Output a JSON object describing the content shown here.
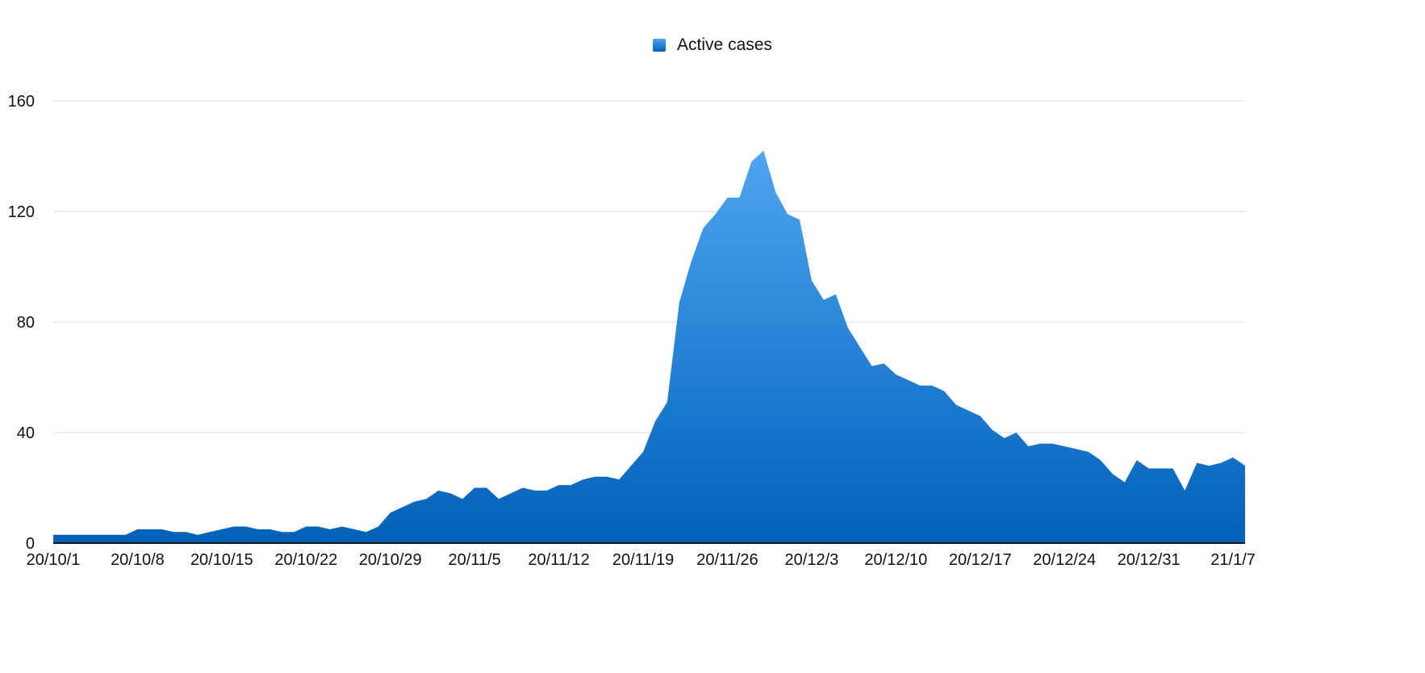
{
  "chart_data": {
    "type": "area",
    "legend": [
      {
        "label": "Active cases",
        "position": "top-center"
      }
    ],
    "series": [
      {
        "name": "Active cases",
        "color_top": "#4da6f0",
        "color_bottom": "#0061bb"
      }
    ],
    "y_ticks": [
      "0",
      "40",
      "80",
      "120",
      "160"
    ],
    "ylim": [
      0,
      160
    ],
    "grid": true,
    "x_ticks": [
      "20/10/1",
      "20/10/8",
      "20/10/15",
      "20/10/22",
      "20/10/29",
      "20/11/5",
      "20/11/12",
      "20/11/19",
      "20/11/26",
      "20/12/3",
      "20/12/10",
      "20/12/17",
      "20/12/24",
      "20/12/31",
      "21/1/7"
    ],
    "x": [
      "2020-10-01",
      "2020-10-02",
      "2020-10-03",
      "2020-10-04",
      "2020-10-05",
      "2020-10-06",
      "2020-10-07",
      "2020-10-08",
      "2020-10-09",
      "2020-10-10",
      "2020-10-11",
      "2020-10-12",
      "2020-10-13",
      "2020-10-14",
      "2020-10-15",
      "2020-10-16",
      "2020-10-17",
      "2020-10-18",
      "2020-10-19",
      "2020-10-20",
      "2020-10-21",
      "2020-10-22",
      "2020-10-23",
      "2020-10-24",
      "2020-10-25",
      "2020-10-26",
      "2020-10-27",
      "2020-10-28",
      "2020-10-29",
      "2020-10-30",
      "2020-10-31",
      "2020-11-01",
      "2020-11-02",
      "2020-11-03",
      "2020-11-04",
      "2020-11-05",
      "2020-11-06",
      "2020-11-07",
      "2020-11-08",
      "2020-11-09",
      "2020-11-10",
      "2020-11-11",
      "2020-11-12",
      "2020-11-13",
      "2020-11-14",
      "2020-11-15",
      "2020-11-16",
      "2020-11-17",
      "2020-11-18",
      "2020-11-19",
      "2020-11-20",
      "2020-11-21",
      "2020-11-22",
      "2020-11-23",
      "2020-11-24",
      "2020-11-25",
      "2020-11-26",
      "2020-11-27",
      "2020-11-28",
      "2020-11-29",
      "2020-11-30",
      "2020-12-01",
      "2020-12-02",
      "2020-12-03",
      "2020-12-04",
      "2020-12-05",
      "2020-12-06",
      "2020-12-07",
      "2020-12-08",
      "2020-12-09",
      "2020-12-10",
      "2020-12-11",
      "2020-12-12",
      "2020-12-13",
      "2020-12-14",
      "2020-12-15",
      "2020-12-16",
      "2020-12-17",
      "2020-12-18",
      "2020-12-19",
      "2020-12-20",
      "2020-12-21",
      "2020-12-22",
      "2020-12-23",
      "2020-12-24",
      "2020-12-25",
      "2020-12-26",
      "2020-12-27",
      "2020-12-28",
      "2020-12-29",
      "2020-12-30",
      "2020-12-31",
      "2021-01-01",
      "2021-01-02",
      "2021-01-03",
      "2021-01-04",
      "2021-01-05",
      "2021-01-06",
      "2021-01-07",
      "2021-01-08"
    ],
    "values": [
      3,
      3,
      3,
      3,
      3,
      3,
      3,
      5,
      5,
      5,
      4,
      4,
      3,
      4,
      5,
      6,
      6,
      5,
      5,
      4,
      4,
      6,
      6,
      5,
      6,
      5,
      4,
      6,
      11,
      13,
      15,
      16,
      19,
      18,
      16,
      20,
      20,
      16,
      18,
      20,
      19,
      19,
      21,
      21,
      23,
      24,
      24,
      23,
      28,
      33,
      44,
      51,
      87,
      102,
      114,
      119,
      125,
      125,
      138,
      142,
      127,
      119,
      117,
      95,
      88,
      90,
      78,
      71,
      64,
      65,
      61,
      59,
      57,
      57,
      55,
      50,
      48,
      46,
      41,
      38,
      40,
      35,
      36,
      36,
      35,
      34,
      33,
      30,
      25,
      22,
      30,
      27,
      27,
      27,
      19,
      29,
      28,
      29,
      31,
      28
    ]
  }
}
